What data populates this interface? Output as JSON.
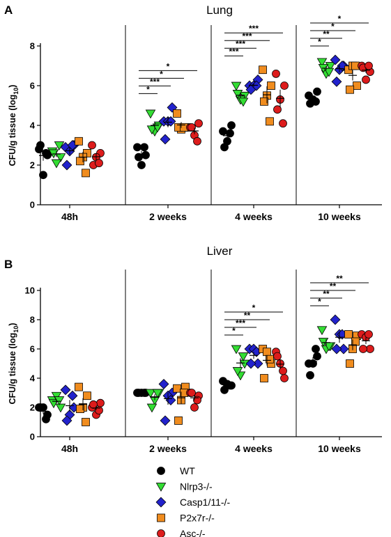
{
  "chart_data": [
    {
      "type": "scatter",
      "panel_letter": "A",
      "title": "Lung",
      "ylabel": "CFU/g tissue  (log",
      "ylabel_sub": "10",
      "ylabel_end": ")",
      "ylim": [
        0,
        8
      ],
      "yticks": [
        0,
        2,
        4,
        6,
        8
      ],
      "groups": [
        "48h",
        "2 weeks",
        "4 weeks",
        "10 weeks"
      ],
      "series": [
        {
          "name": "WT",
          "values": [
            [
              2.8,
              2.5,
              1.5,
              3.0,
              2.6
            ],
            [
              2.9,
              2.5,
              2.0,
              2.4,
              2.9
            ],
            [
              3.7,
              4.0,
              3.2,
              2.9,
              3.6
            ],
            [
              5.5,
              5.7,
              5.3,
              5.1,
              5.2
            ]
          ]
        },
        {
          "name": "Nlrp3-/-",
          "values": [
            [
              2.7,
              2.4,
              2.1,
              2.6,
              3.0
            ],
            [
              4.6,
              4.0,
              3.7,
              3.8,
              3.9
            ],
            [
              6.0,
              5.5,
              5.3,
              5.6,
              5.2
            ],
            [
              7.2,
              7.0,
              6.6,
              6.9,
              6.7
            ]
          ]
        },
        {
          "name": "Casp1/11-/-",
          "values": [
            [
              2.9,
              3.0,
              2.7,
              2.0,
              3.0
            ],
            [
              4.2,
              4.9,
              4.2,
              3.3,
              4.2
            ],
            [
              6.0,
              6.3,
              6.0,
              5.8,
              6.0
            ],
            [
              7.3,
              7.0,
              6.8,
              6.2,
              7.0
            ]
          ]
        },
        {
          "name": "P2x7r-/-",
          "values": [
            [
              3.2,
              2.6,
              2.4,
              2.2,
              1.6
            ],
            [
              4.6,
              3.9,
              3.8,
              3.9,
              3.9
            ],
            [
              6.8,
              6.0,
              5.5,
              5.2,
              4.2
            ],
            [
              6.8,
              6.0,
              7.0,
              5.8,
              7.0
            ]
          ]
        },
        {
          "name": "Asc-/-",
          "values": [
            [
              3.0,
              2.6,
              2.4,
              2.0,
              2.1
            ],
            [
              3.9,
              4.1,
              3.5,
              3.9,
              3.2
            ],
            [
              6.6,
              6.0,
              5.3,
              4.8,
              4.1
            ],
            [
              7.0,
              6.7,
              6.3,
              6.9,
              7.0
            ]
          ]
        }
      ],
      "significance": [
        {
          "group": 1,
          "to": 1,
          "label": "*"
        },
        {
          "group": 1,
          "to": 2,
          "label": "***"
        },
        {
          "group": 1,
          "to": 3,
          "label": "*"
        },
        {
          "group": 1,
          "to": 4,
          "label": "*"
        },
        {
          "group": 2,
          "to": 1,
          "label": "***"
        },
        {
          "group": 2,
          "to": 2,
          "label": "***"
        },
        {
          "group": 2,
          "to": 3,
          "label": "***"
        },
        {
          "group": 2,
          "to": 4,
          "label": "***"
        },
        {
          "group": 3,
          "to": 1,
          "label": "*"
        },
        {
          "group": 3,
          "to": 2,
          "label": "**"
        },
        {
          "group": 3,
          "to": 3,
          "label": "*"
        },
        {
          "group": 3,
          "to": 4,
          "label": "*"
        }
      ]
    },
    {
      "type": "scatter",
      "panel_letter": "B",
      "title": "Liver",
      "ylabel": "CFU/g tissue  (log",
      "ylabel_sub": "10",
      "ylabel_end": ")",
      "ylim": [
        0,
        10
      ],
      "yticks": [
        0,
        2,
        4,
        6,
        8,
        10
      ],
      "groups": [
        "48h",
        "2 weeks",
        "4 weeks",
        "10 weeks"
      ],
      "series": [
        {
          "name": "WT",
          "values": [
            [
              2.0,
              1.5,
              2.0,
              2.0,
              1.2
            ],
            [
              3.0,
              3.0,
              3.0,
              3.0,
              3.0
            ],
            [
              3.8,
              3.5,
              3.6,
              3.2,
              3.5
            ],
            [
              5.0,
              5.5,
              5.0,
              4.2,
              6.0
            ]
          ]
        },
        {
          "name": "Nlrp3-/-",
          "values": [
            [
              2.5,
              2.0,
              2.8,
              2.3,
              2.5
            ],
            [
              3.0,
              3.0,
              2.5,
              2.0,
              3.0
            ],
            [
              6.0,
              5.0,
              4.2,
              4.5,
              5.5
            ],
            [
              7.3,
              6.2,
              6.0,
              6.5,
              6.2
            ]
          ]
        },
        {
          "name": "Casp1/11-/-",
          "values": [
            [
              3.2,
              2.0,
              1.5,
              1.1,
              2.8
            ],
            [
              3.6,
              3.0,
              2.8,
              1.1,
              2.5
            ],
            [
              6.0,
              5.0,
              6.0,
              5.0,
              5.8
            ],
            [
              8.0,
              6.0,
              7.0,
              6.0,
              7.0
            ]
          ]
        },
        {
          "name": "P2x7r-/-",
          "values": [
            [
              3.4,
              2.8,
              2.0,
              1.9,
              1.0
            ],
            [
              3.3,
              3.4,
              2.5,
              1.1,
              3.0
            ],
            [
              6.0,
              5.0,
              5.8,
              4.0,
              5.3
            ],
            [
              7.0,
              6.9,
              6.0,
              5.0,
              6.5
            ]
          ]
        },
        {
          "name": "Asc-/-",
          "values": [
            [
              2.0,
              2.3,
              1.5,
              2.2,
              1.8
            ],
            [
              3.0,
              2.8,
              2.0,
              3.0,
              2.5
            ],
            [
              5.8,
              4.0,
              5.0,
              5.5,
              4.5
            ],
            [
              7.0,
              6.0,
              6.8,
              6.0,
              7.0
            ]
          ]
        }
      ],
      "significance": [
        {
          "group": 2,
          "to": 1,
          "label": "*"
        },
        {
          "group": 2,
          "to": 2,
          "label": "***"
        },
        {
          "group": 2,
          "to": 3,
          "label": "**"
        },
        {
          "group": 2,
          "to": 4,
          "label": "*"
        },
        {
          "group": 3,
          "to": 1,
          "label": "*"
        },
        {
          "group": 3,
          "to": 2,
          "label": "**"
        },
        {
          "group": 3,
          "to": 3,
          "label": "**"
        },
        {
          "group": 3,
          "to": 4,
          "label": "**"
        }
      ]
    }
  ],
  "legend": {
    "placement": "bottom-center",
    "entries": [
      "WT",
      "Nlrp3-/-",
      "Casp1/11-/-",
      "P2x7r-/-",
      "Asc-/-"
    ]
  },
  "colors": {
    "WT": "#000000",
    "Nlrp3-/-": "#33dd33",
    "Casp1/11-/-": "#2222cc",
    "P2x7r-/-": "#f08c1e",
    "Asc-/-": "#dd1c1c"
  },
  "markers": {
    "WT": "circle",
    "Nlrp3-/-": "triangle-down",
    "Casp1/11-/-": "diamond",
    "P2x7r-/-": "square",
    "Asc-/-": "circle"
  }
}
